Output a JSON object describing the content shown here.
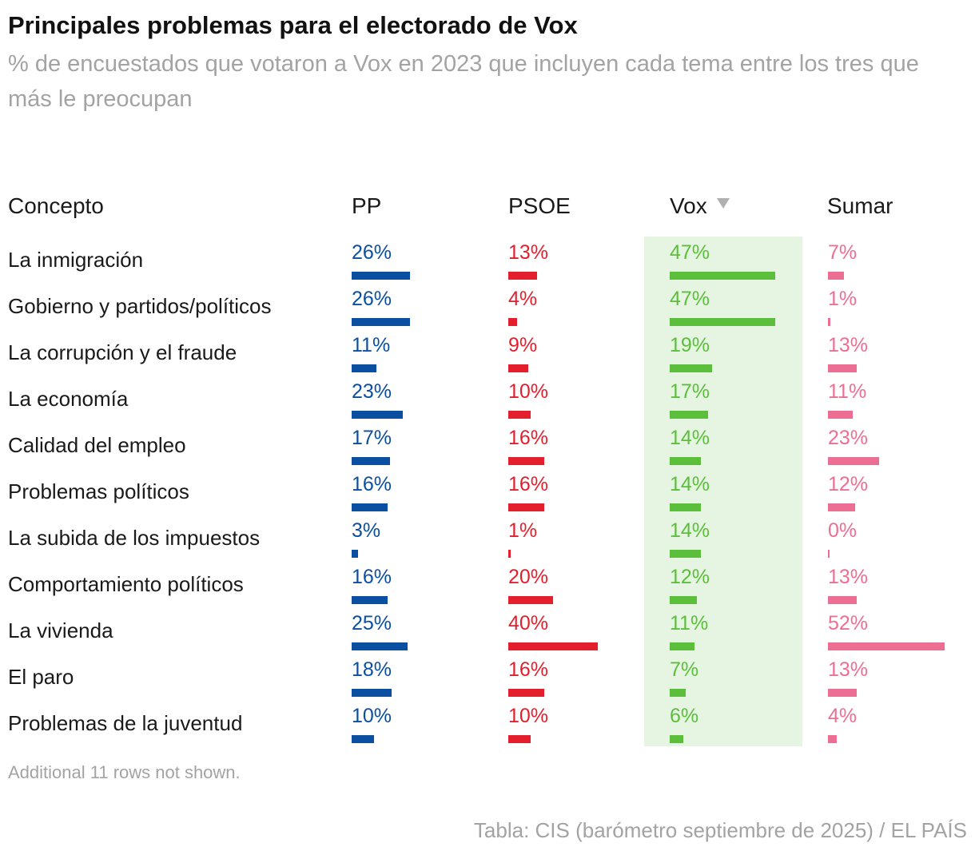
{
  "title": "Principales problemas para el electorado de Vox",
  "subtitle": "% de encuestados que votaron a Vox en 2023 que incluyen cada tema entre los tres que más le preocupan",
  "footnote": "Additional 11 rows not shown.",
  "source": "Tabla: CIS (barómetro septiembre de 2025) / EL PAÍS",
  "sort_icon": "triangle-down-icon",
  "columns": {
    "concept": "Concepto",
    "pp": "PP",
    "psoe": "PSOE",
    "vox": "Vox",
    "sumar": "Sumar"
  },
  "colors": {
    "pp": "#0a4fa0",
    "psoe": "#e41f2d",
    "vox": "#5bbf3b",
    "sumar": "#ec6f93",
    "vox_highlight": "#e6f5e1"
  },
  "chart_data": {
    "type": "table",
    "title": "Principales problemas para el electorado de Vox",
    "subtitle": "% de encuestados que votaron a Vox en 2023 que incluyen cada tema entre los tres que más le preocupan",
    "unit": "%",
    "sorted_by": "Vox",
    "sort_direction": "descending",
    "categories": [
      "La inmigración",
      "Gobierno y partidos/políticos",
      "La corrupción y el fraude",
      "La economía",
      "Calidad del empleo",
      "Problemas políticos",
      "La subida de los impuestos",
      "Comportamiento políticos",
      "La vivienda",
      "El paro",
      "Problemas de la juventud"
    ],
    "series": [
      {
        "name": "PP",
        "key": "pp",
        "values": [
          26,
          26,
          11,
          23,
          17,
          16,
          3,
          16,
          25,
          18,
          10
        ]
      },
      {
        "name": "PSOE",
        "key": "psoe",
        "values": [
          13,
          4,
          9,
          10,
          16,
          16,
          1,
          20,
          40,
          16,
          10
        ]
      },
      {
        "name": "Vox",
        "key": "vox",
        "values": [
          47,
          47,
          19,
          17,
          14,
          14,
          14,
          12,
          11,
          7,
          6
        ]
      },
      {
        "name": "Sumar",
        "key": "sumar",
        "values": [
          7,
          1,
          13,
          11,
          23,
          12,
          0,
          13,
          52,
          13,
          4
        ]
      }
    ]
  }
}
